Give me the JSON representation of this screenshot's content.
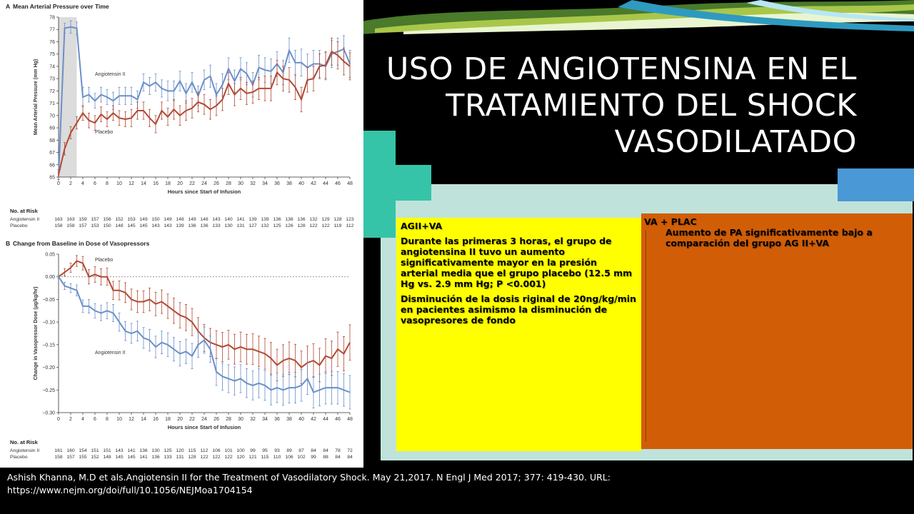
{
  "slide": {
    "title_lines": [
      "USO DE ANGIOTENSINA EN EL",
      "TRATAMIENTO DEL SHOCK",
      "VASODILATADO"
    ],
    "colors": {
      "background": "#000000",
      "mint": "#bfe3da",
      "teal_plus": "#35c4a7",
      "blue": "#4a98d6",
      "yellow": "#ffff00",
      "orange": "#d15e06"
    }
  },
  "yellow_box": {
    "heading": "AGII+VA",
    "para1": "Durante las primeras 3 horas, el grupo de angiotensina II tuvo un aumento significativamente mayor en la presión arterial media que el grupo placebo (12.5 mm Hg vs. 2.9 mm Hg; P <0.001)",
    "para2": "Disminución de la dosis riginal  de 20ng/kg/min en pacientes asimismo la disminución de vasopresores de fondo"
  },
  "orange_box": {
    "heading": "VA + PLAC",
    "text": "Aumento de PA significativamente  bajo a comparación del grupo AG II+VA"
  },
  "citation": {
    "line1": "Ashish Khanna, M.D et als.Angiotensin II for the Treatment of Vasodilatory Shock. May 21,2017. N Engl J Med 2017; 377: 419-430. URL:",
    "line2": "https://www.nejm.org/doi/full/10.1056/NEJMoa1704154"
  },
  "chart_data": [
    {
      "type": "line",
      "panel": "A",
      "title": "Mean Arterial Pressure over Time",
      "xlabel": "Hours since Start of Infusion",
      "ylabel": "Mean Arterial Pressure (mm Hg)",
      "xlim": [
        0,
        48
      ],
      "ylim": [
        65,
        78
      ],
      "x_ticks": [
        0,
        2,
        4,
        6,
        8,
        10,
        12,
        14,
        16,
        18,
        20,
        22,
        24,
        26,
        28,
        30,
        32,
        34,
        36,
        38,
        40,
        42,
        44,
        46,
        48
      ],
      "y_ticks": [
        65,
        66,
        67,
        68,
        69,
        70,
        71,
        72,
        73,
        74,
        75,
        76,
        77,
        78
      ],
      "shaded_x": [
        0,
        3
      ],
      "series": [
        {
          "name": "Angiotensin II",
          "color": "#6b8fc9",
          "x": [
            0,
            1,
            2,
            3,
            4,
            5,
            6,
            7,
            8,
            9,
            10,
            11,
            12,
            13,
            14,
            15,
            16,
            17,
            18,
            19,
            20,
            21,
            22,
            23,
            24,
            25,
            26,
            27,
            28,
            29,
            30,
            31,
            32,
            33,
            34,
            35,
            36,
            37,
            38,
            39,
            40,
            41,
            42,
            43,
            44,
            45,
            46,
            47,
            48
          ],
          "y": [
            65.0,
            77.1,
            77.2,
            77.1,
            71.5,
            71.7,
            71.2,
            71.7,
            71.5,
            71.2,
            71.6,
            71.6,
            71.6,
            71.3,
            72.7,
            72.4,
            72.7,
            72.2,
            72.0,
            72.0,
            72.8,
            71.8,
            72.7,
            71.6,
            72.9,
            73.2,
            71.7,
            72.5,
            73.8,
            72.8,
            73.8,
            73.4,
            72.5,
            73.9,
            73.7,
            73.6,
            74.2,
            73.5,
            75.3,
            74.3,
            74.3,
            73.9,
            74.2,
            74.2,
            74.0,
            75.0,
            75.2,
            75.4,
            74.2
          ],
          "err": [
            0.4,
            0.4,
            0.5,
            0.5,
            0.8,
            0.6,
            0.6,
            0.6,
            0.6,
            0.7,
            0.7,
            0.7,
            0.7,
            0.7,
            0.7,
            0.7,
            0.7,
            0.7,
            0.8,
            0.8,
            0.8,
            0.8,
            0.8,
            0.8,
            0.8,
            0.9,
            0.9,
            0.9,
            0.9,
            0.9,
            0.9,
            0.9,
            1.0,
            1.0,
            1.0,
            1.0,
            1.0,
            1.0,
            1.0,
            1.0,
            1.1,
            1.1,
            1.1,
            1.1,
            1.1,
            1.1,
            1.1,
            1.1,
            1.1
          ]
        },
        {
          "name": "Placebo",
          "color": "#b04a35",
          "x": [
            0,
            1,
            2,
            3,
            4,
            5,
            6,
            7,
            8,
            9,
            10,
            11,
            12,
            13,
            14,
            15,
            16,
            17,
            18,
            19,
            20,
            21,
            22,
            23,
            24,
            25,
            26,
            27,
            28,
            29,
            30,
            31,
            32,
            33,
            34,
            35,
            36,
            37,
            38,
            39,
            40,
            41,
            42,
            43,
            44,
            45,
            46,
            47,
            48
          ],
          "y": [
            65.2,
            67.3,
            68.6,
            69.4,
            70.2,
            69.6,
            69.4,
            70.1,
            69.7,
            70.2,
            69.8,
            69.7,
            69.8,
            70.4,
            70.4,
            69.8,
            69.3,
            70.4,
            69.9,
            70.5,
            70.0,
            70.4,
            70.6,
            71.1,
            70.9,
            70.5,
            70.8,
            71.3,
            72.6,
            71.7,
            72.2,
            71.8,
            71.9,
            72.2,
            72.2,
            72.2,
            73.5,
            73.0,
            72.9,
            72.3,
            71.3,
            72.9,
            73.0,
            74.0,
            74.1,
            75.2,
            74.9,
            74.4,
            74.0
          ],
          "err": [
            0.4,
            0.5,
            0.5,
            0.5,
            0.6,
            0.6,
            0.6,
            0.6,
            0.6,
            0.6,
            0.6,
            0.6,
            0.7,
            0.7,
            0.7,
            0.7,
            0.7,
            0.7,
            0.7,
            0.8,
            0.8,
            0.8,
            0.8,
            0.8,
            0.8,
            0.8,
            0.8,
            0.9,
            0.9,
            0.9,
            0.9,
            0.9,
            0.9,
            0.9,
            1.0,
            1.0,
            1.0,
            1.0,
            1.0,
            1.0,
            1.0,
            1.0,
            1.0,
            1.0,
            1.1,
            1.1,
            1.1,
            1.1,
            1.1
          ]
        }
      ],
      "at_risk": {
        "label": "No. at Risk",
        "x": [
          0,
          2,
          4,
          6,
          8,
          10,
          12,
          14,
          16,
          18,
          20,
          22,
          24,
          26,
          28,
          30,
          32,
          34,
          36,
          38,
          40,
          42,
          44,
          46,
          48
        ],
        "rows": [
          {
            "label": "Angiotensin II",
            "values": [
              "163",
              "163",
              "159",
              "157",
              "156",
              "152",
              "153",
              "149",
              "150",
              "149",
              "148",
              "149",
              "148",
              "143",
              "140",
              "141",
              "139",
              "139",
              "136",
              "138",
              "136",
              "132",
              "129",
              "128",
              "123"
            ]
          },
          {
            "label": "Placebo",
            "values": [
              "158",
              "158",
              "157",
              "153",
              "150",
              "148",
              "145",
              "145",
              "143",
              "143",
              "139",
              "136",
              "136",
              "133",
              "130",
              "131",
              "127",
              "132",
              "125",
              "126",
              "128",
              "122",
              "122",
              "119",
              "112"
            ]
          }
        ]
      }
    },
    {
      "type": "line",
      "panel": "B",
      "title": "Change from Baseline in Dose of Vasopressors",
      "xlabel": "Hours since Start of Infusion",
      "ylabel": "Change in Vasopressor Dose (µg/kg/hr)",
      "xlim": [
        0,
        48
      ],
      "ylim": [
        -0.3,
        0.05
      ],
      "x_ticks": [
        0,
        2,
        4,
        6,
        8,
        10,
        12,
        14,
        16,
        18,
        20,
        22,
        24,
        26,
        28,
        30,
        32,
        34,
        36,
        38,
        40,
        42,
        44,
        46,
        48
      ],
      "y_ticks": [
        0.05,
        0.0,
        -0.05,
        -0.1,
        -0.15,
        -0.2,
        -0.25,
        -0.3
      ],
      "y_tick_labels": [
        "0.05",
        "0.00",
        "−0.05",
        "−0.10",
        "−0.15",
        "−0.20",
        "−0.25",
        "−0.30"
      ],
      "series": [
        {
          "name": "Placebo",
          "color": "#b04a35",
          "x": [
            0,
            1,
            2,
            3,
            4,
            5,
            6,
            7,
            8,
            9,
            10,
            11,
            12,
            13,
            14,
            15,
            16,
            17,
            18,
            19,
            20,
            21,
            22,
            23,
            24,
            25,
            26,
            27,
            28,
            29,
            30,
            31,
            32,
            33,
            34,
            35,
            36,
            37,
            38,
            39,
            40,
            41,
            42,
            43,
            44,
            45,
            46,
            47,
            48
          ],
          "y": [
            0.0,
            0.01,
            0.02,
            0.035,
            0.03,
            0.0,
            0.005,
            0.0,
            0.0,
            -0.03,
            -0.03,
            -0.035,
            -0.05,
            -0.055,
            -0.055,
            -0.05,
            -0.06,
            -0.055,
            -0.065,
            -0.075,
            -0.085,
            -0.09,
            -0.1,
            -0.12,
            -0.135,
            -0.145,
            -0.15,
            -0.155,
            -0.15,
            -0.16,
            -0.155,
            -0.16,
            -0.16,
            -0.165,
            -0.17,
            -0.18,
            -0.195,
            -0.185,
            -0.18,
            -0.185,
            -0.2,
            -0.19,
            -0.185,
            -0.195,
            -0.175,
            -0.18,
            -0.16,
            -0.17,
            -0.145
          ],
          "err": [
            0.003,
            0.008,
            0.01,
            0.012,
            0.015,
            0.016,
            0.017,
            0.018,
            0.019,
            0.02,
            0.021,
            0.022,
            0.023,
            0.024,
            0.024,
            0.025,
            0.026,
            0.026,
            0.027,
            0.028,
            0.028,
            0.029,
            0.03,
            0.03,
            0.03,
            0.031,
            0.031,
            0.032,
            0.032,
            0.033,
            0.033,
            0.033,
            0.034,
            0.034,
            0.034,
            0.035,
            0.035,
            0.035,
            0.036,
            0.036,
            0.036,
            0.037,
            0.037,
            0.037,
            0.038,
            0.038,
            0.038,
            0.038,
            0.039
          ]
        },
        {
          "name": "Angiotensin II",
          "color": "#6b8fc9",
          "x": [
            0,
            1,
            2,
            3,
            4,
            5,
            6,
            7,
            8,
            9,
            10,
            11,
            12,
            13,
            14,
            15,
            16,
            17,
            18,
            19,
            20,
            21,
            22,
            23,
            24,
            25,
            26,
            27,
            28,
            29,
            30,
            31,
            32,
            33,
            34,
            35,
            36,
            37,
            38,
            39,
            40,
            41,
            42,
            43,
            44,
            45,
            46,
            47,
            48
          ],
          "y": [
            0.0,
            -0.02,
            -0.025,
            -0.03,
            -0.065,
            -0.065,
            -0.075,
            -0.08,
            -0.075,
            -0.08,
            -0.1,
            -0.12,
            -0.125,
            -0.12,
            -0.135,
            -0.14,
            -0.155,
            -0.145,
            -0.15,
            -0.16,
            -0.17,
            -0.165,
            -0.175,
            -0.15,
            -0.14,
            -0.16,
            -0.21,
            -0.22,
            -0.225,
            -0.23,
            -0.225,
            -0.235,
            -0.24,
            -0.235,
            -0.24,
            -0.25,
            -0.245,
            -0.25,
            -0.245,
            -0.245,
            -0.24,
            -0.225,
            -0.255,
            -0.25,
            -0.245,
            -0.245,
            -0.245,
            -0.25,
            -0.255
          ],
          "err": [
            0.003,
            0.008,
            0.01,
            0.012,
            0.014,
            0.015,
            0.016,
            0.017,
            0.018,
            0.019,
            0.02,
            0.021,
            0.022,
            0.022,
            0.023,
            0.024,
            0.024,
            0.025,
            0.026,
            0.026,
            0.027,
            0.027,
            0.028,
            0.028,
            0.029,
            0.029,
            0.03,
            0.03,
            0.031,
            0.031,
            0.031,
            0.032,
            0.032,
            0.032,
            0.033,
            0.033,
            0.033,
            0.034,
            0.034,
            0.034,
            0.035,
            0.035,
            0.035,
            0.035,
            0.036,
            0.036,
            0.036,
            0.036,
            0.037
          ]
        }
      ],
      "at_risk": {
        "label": "No. at Risk",
        "x": [
          0,
          2,
          4,
          6,
          8,
          10,
          12,
          14,
          16,
          18,
          20,
          22,
          24,
          26,
          28,
          30,
          32,
          34,
          36,
          38,
          40,
          42,
          44,
          46,
          48
        ],
        "rows": [
          {
            "label": "Angiotensin II",
            "values": [
              "161",
              "160",
              "154",
              "151",
              "151",
              "143",
              "141",
              "136",
              "130",
              "125",
              "120",
              "115",
              "112",
              "106",
              "101",
              "100",
              "99",
              "95",
              "93",
              "89",
              "87",
              "84",
              "84",
              "78",
              "72"
            ]
          },
          {
            "label": "Placebo",
            "values": [
              "158",
              "157",
              "155",
              "152",
              "148",
              "145",
              "145",
              "141",
              "136",
              "133",
              "131",
              "128",
              "122",
              "122",
              "122",
              "120",
              "121",
              "115",
              "110",
              "106",
              "102",
              "99",
              "88",
              "84",
              "84"
            ]
          }
        ]
      }
    }
  ]
}
